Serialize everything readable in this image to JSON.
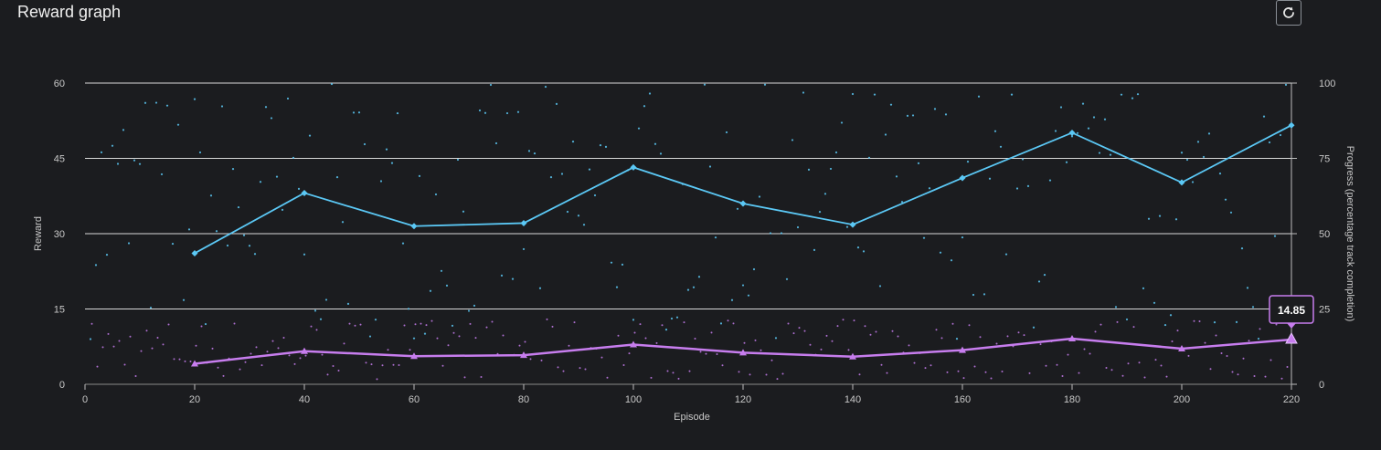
{
  "panel": {
    "title": "Reward graph",
    "refresh_icon": "refresh-icon"
  },
  "chart_data": {
    "type": "line",
    "title": "Reward graph",
    "xlabel": "Episode",
    "ylabel": "Reward",
    "y2label": "Progress (percentage track completion)",
    "xlim": [
      0,
      220
    ],
    "ylim": [
      0,
      60
    ],
    "y2lim": [
      0,
      100
    ],
    "xticks": [
      "0",
      "20",
      "40",
      "60",
      "80",
      "100",
      "120",
      "140",
      "160",
      "180",
      "200",
      "220"
    ],
    "yticks": [
      "0",
      "15",
      "30",
      "45",
      "60"
    ],
    "y2ticks": [
      "0",
      "25",
      "50",
      "75",
      "100"
    ],
    "grid": true,
    "series": [
      {
        "axis": "right",
        "color": "#5bc8f5",
        "marker": "diamond",
        "x": [
          20,
          40,
          60,
          80,
          100,
          120,
          140,
          160,
          180,
          200,
          220
        ],
        "y": [
          43.5,
          63.5,
          52.5,
          53.5,
          72,
          60,
          53,
          68.5,
          83.5,
          67,
          86
        ]
      },
      {
        "axis": "left",
        "color": "#c77dee",
        "marker": "triangle",
        "x": [
          20,
          40,
          60,
          80,
          100,
          120,
          140,
          160,
          180,
          200,
          220
        ],
        "y": [
          4.1,
          6.6,
          5.6,
          5.8,
          7.9,
          6.3,
          5.5,
          6.8,
          9.1,
          7.1,
          8.9
        ]
      }
    ],
    "tooltip": {
      "x": 220,
      "label": "14.85"
    }
  }
}
